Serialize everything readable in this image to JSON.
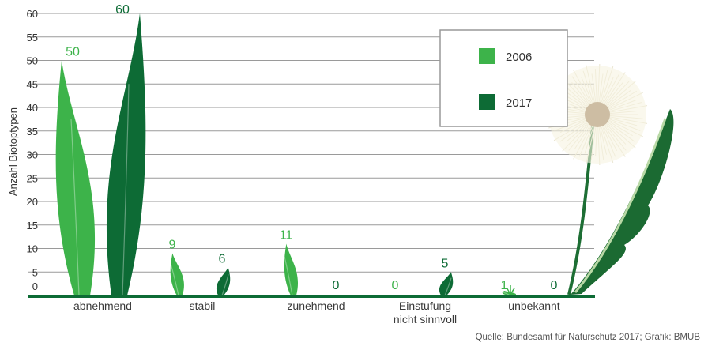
{
  "chart_data": {
    "type": "bar",
    "ylabel": "Anzahl Biotoptypen",
    "xlabel": "",
    "ylim": [
      0,
      60
    ],
    "yticks": [
      0,
      5,
      10,
      15,
      20,
      25,
      30,
      35,
      40,
      45,
      50,
      55,
      60
    ],
    "grid": true,
    "legend_position": "top-right",
    "categories": [
      "abnehmend",
      "stabil",
      "zunehmend",
      "Einstufung nicht sinnvoll",
      "unbekannt"
    ],
    "category_label_lines": [
      [
        "abnehmend"
      ],
      [
        "stabil"
      ],
      [
        "zunehmend"
      ],
      [
        "Einstufung",
        "nicht sinnvoll"
      ],
      [
        "unbekannt"
      ]
    ],
    "series": [
      {
        "name": "2006",
        "values": [
          50,
          9,
          11,
          0,
          1
        ],
        "color": "#3db34a"
      },
      {
        "name": "2017",
        "values": [
          60,
          6,
          0,
          5,
          0
        ],
        "color": "#0d6b35"
      }
    ],
    "source": "Quelle: Bundesamt für Naturschutz 2017; Grafik: BMUB"
  }
}
